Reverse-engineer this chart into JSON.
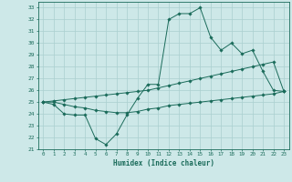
{
  "xlabel": "Humidex (Indice chaleur)",
  "x": [
    0,
    1,
    2,
    3,
    4,
    5,
    6,
    7,
    8,
    9,
    10,
    11,
    12,
    13,
    14,
    15,
    16,
    17,
    18,
    19,
    20,
    21,
    22,
    23
  ],
  "line1": [
    25.0,
    24.8,
    24.0,
    23.9,
    23.9,
    21.9,
    21.4,
    22.3,
    23.9,
    25.3,
    26.5,
    26.5,
    32.0,
    32.5,
    32.5,
    33.0,
    30.5,
    29.4,
    30.0,
    29.1,
    29.4,
    27.6,
    26.0,
    25.9
  ],
  "line2": [
    25.0,
    25.1,
    25.2,
    25.3,
    25.4,
    25.5,
    25.6,
    25.7,
    25.8,
    25.9,
    26.0,
    26.2,
    26.4,
    26.6,
    26.8,
    27.0,
    27.2,
    27.4,
    27.6,
    27.8,
    28.0,
    28.2,
    28.4,
    25.9
  ],
  "line3": [
    25.0,
    25.0,
    24.8,
    24.6,
    24.5,
    24.3,
    24.2,
    24.1,
    24.1,
    24.2,
    24.4,
    24.5,
    24.7,
    24.8,
    24.9,
    25.0,
    25.1,
    25.2,
    25.3,
    25.4,
    25.5,
    25.6,
    25.7,
    25.9
  ],
  "color": "#1a6b5a",
  "bg_color": "#cde8e8",
  "grid_color": "#aacfcf",
  "ylim": [
    21,
    33.5
  ],
  "yticks": [
    21,
    22,
    23,
    24,
    25,
    26,
    27,
    28,
    29,
    30,
    31,
    32,
    33
  ],
  "xticks": [
    0,
    1,
    2,
    3,
    4,
    5,
    6,
    7,
    8,
    9,
    10,
    11,
    12,
    13,
    14,
    15,
    16,
    17,
    18,
    19,
    20,
    21,
    22,
    23
  ],
  "marker_size": 1.8,
  "linewidth": 0.7
}
